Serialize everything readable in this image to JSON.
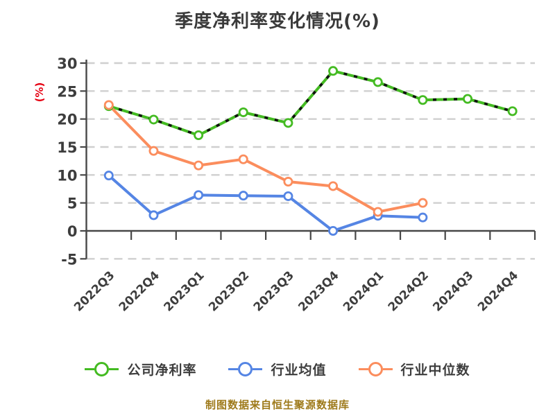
{
  "title": "季度净利率变化情况(%)",
  "footer": "制图数据来自恒生聚源数据库",
  "colors": {
    "company": "#44bb22",
    "industry_avg": "#5585e4",
    "industry_median": "#fb8d5d",
    "grid": "#cfcfcf",
    "axis": "#474747",
    "tick_label": "#3d3d3d",
    "title": "#3a3a3a",
    "ylabel": "#e60012",
    "footer": "#9e7a1b",
    "dash_overlay": "#111111"
  },
  "legend": [
    {
      "label": "公司净利率",
      "color": "#44bb22"
    },
    {
      "label": "行业均值",
      "color": "#5585e4"
    },
    {
      "label": "行业中位数",
      "color": "#fb8d5d"
    }
  ],
  "chart_data": {
    "type": "line",
    "title": "季度净利率变化情况(%)",
    "ylabel": "(%)",
    "xlabel": "",
    "ylim": [
      -5,
      30
    ],
    "yticks": [
      30,
      25,
      20,
      15,
      10,
      5,
      0,
      -5
    ],
    "grid": "horizontal dashed",
    "legend_position": "bottom",
    "categories": [
      "2022Q3",
      "2022Q4",
      "2023Q1",
      "2023Q2",
      "2023Q3",
      "2023Q4",
      "2024Q1",
      "2024Q2",
      "2024Q3",
      "2024Q4"
    ],
    "series": [
      {
        "name": "公司净利率",
        "color": "#44bb22",
        "line_style": "green with black dashes",
        "values": [
          22.3,
          19.9,
          17.1,
          21.2,
          19.3,
          28.6,
          26.6,
          23.4,
          23.6,
          21.4
        ]
      },
      {
        "name": "行业均值",
        "color": "#5585e4",
        "line_style": "solid",
        "values": [
          9.9,
          2.8,
          6.4,
          6.3,
          6.2,
          0.0,
          2.7,
          2.4,
          null,
          null
        ]
      },
      {
        "name": "行业中位数",
        "color": "#fb8d5d",
        "line_style": "solid",
        "values": [
          22.5,
          14.3,
          11.7,
          12.8,
          8.8,
          8.0,
          3.4,
          5.0,
          null,
          null
        ]
      }
    ]
  }
}
